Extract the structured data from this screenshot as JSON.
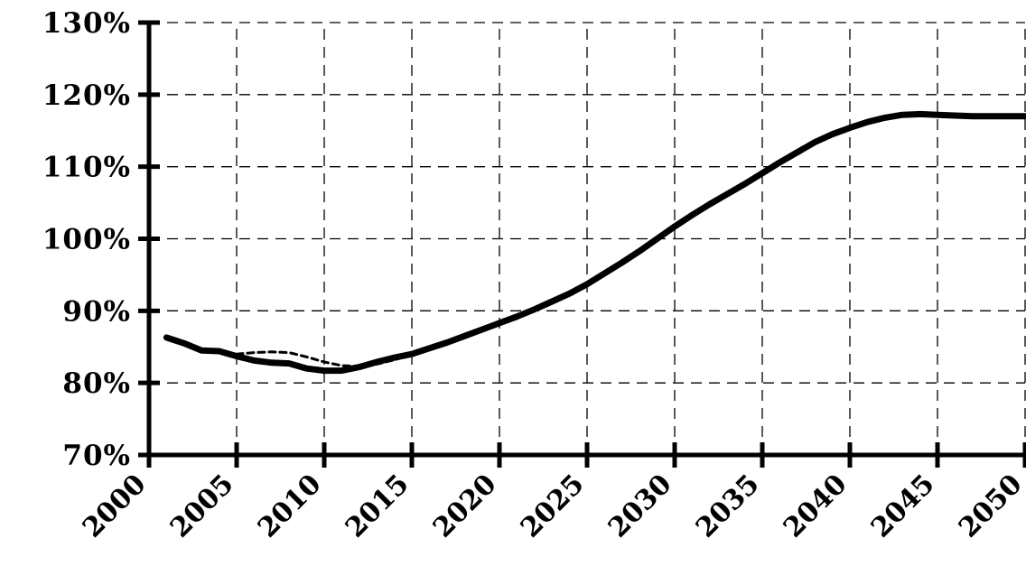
{
  "chart_data": {
    "type": "line",
    "title": "",
    "xlabel": "",
    "ylabel": "",
    "xlim": [
      2000,
      2050
    ],
    "ylim": [
      70,
      130
    ],
    "x_ticks": [
      2000,
      2005,
      2010,
      2015,
      2020,
      2025,
      2030,
      2035,
      2040,
      2045,
      2050
    ],
    "x_tick_labels": [
      "2000",
      "2005",
      "2010",
      "2015",
      "2020",
      "2025",
      "2030",
      "2035",
      "2040",
      "2045",
      "2050"
    ],
    "y_ticks": [
      70,
      80,
      90,
      100,
      110,
      120,
      130
    ],
    "y_tick_labels": [
      "70%",
      "80%",
      "90%",
      "100%",
      "110%",
      "120%",
      "130%"
    ],
    "grid": true,
    "legend": "none",
    "series": [
      {
        "style": "solid",
        "color": "#000000",
        "x": [
          2001,
          2002,
          2003,
          2004,
          2005,
          2006,
          2007,
          2008,
          2009,
          2010,
          2011,
          2012,
          2013,
          2014,
          2015,
          2016,
          2017,
          2018,
          2019,
          2020,
          2021,
          2022,
          2023,
          2024,
          2025,
          2026,
          2027,
          2028,
          2029,
          2030,
          2031,
          2032,
          2033,
          2034,
          2035,
          2036,
          2037,
          2038,
          2039,
          2040,
          2041,
          2042,
          2043,
          2044,
          2045,
          2046,
          2047,
          2048,
          2049,
          2050
        ],
        "y": [
          86.3,
          85.5,
          84.5,
          84.4,
          83.7,
          83.1,
          82.8,
          82.7,
          82.0,
          81.7,
          81.7,
          82.2,
          82.9,
          83.5,
          84.0,
          84.8,
          85.6,
          86.5,
          87.4,
          88.3,
          89.2,
          90.2,
          91.3,
          92.4,
          93.7,
          95.2,
          96.7,
          98.3,
          100.0,
          101.7,
          103.3,
          104.8,
          106.2,
          107.6,
          109.1,
          110.6,
          112.0,
          113.4,
          114.5,
          115.4,
          116.2,
          116.8,
          117.2,
          117.3,
          117.2,
          117.1,
          117.0,
          117.0,
          117.0,
          117.0
        ]
      },
      {
        "style": "dashed",
        "color": "#000000",
        "x": [
          2005,
          2006,
          2007,
          2008,
          2009,
          2010,
          2011,
          2012,
          2013,
          2014,
          2015
        ],
        "y": [
          84.0,
          84.2,
          84.3,
          84.2,
          83.6,
          82.9,
          82.4,
          82.3,
          82.6,
          83.2,
          83.9
        ]
      }
    ]
  }
}
